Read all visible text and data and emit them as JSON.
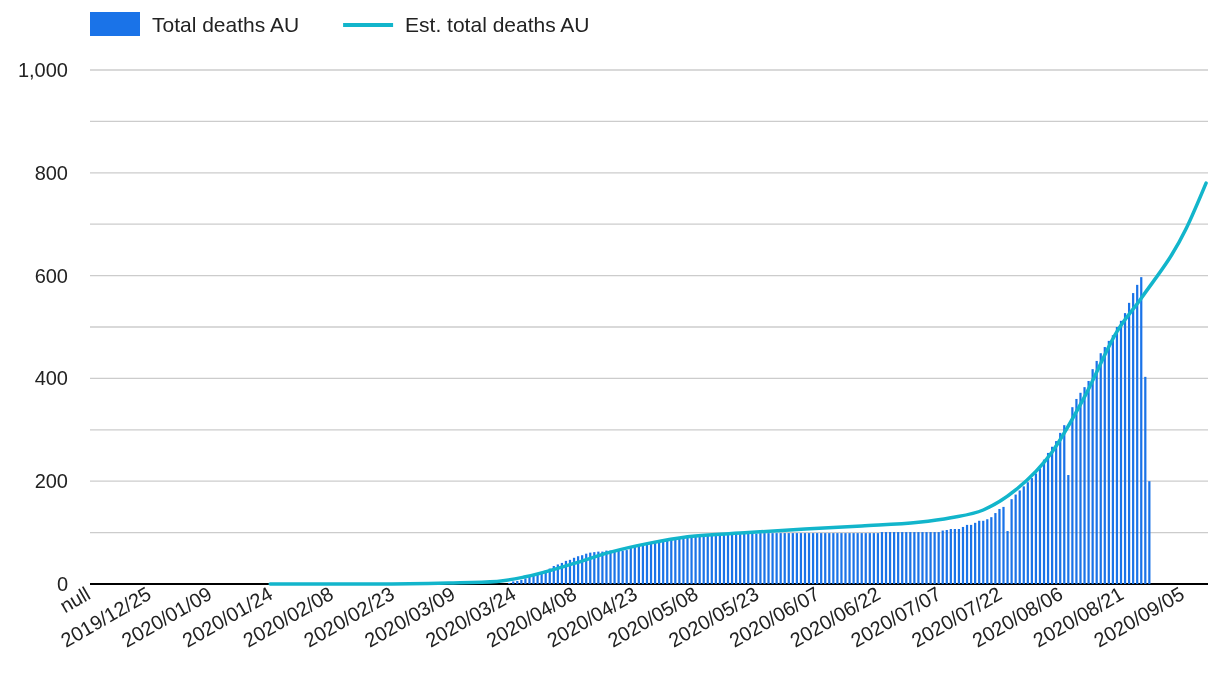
{
  "chart_data": {
    "type": "bar",
    "legend": "top",
    "grid": "y",
    "categories": [
      "null",
      null,
      null,
      null,
      null,
      null,
      null,
      null,
      null,
      null,
      null,
      null,
      null,
      null,
      null,
      "2019/12/25",
      null,
      null,
      null,
      null,
      null,
      null,
      null,
      null,
      null,
      null,
      null,
      null,
      null,
      null,
      "2020/01/09",
      null,
      null,
      null,
      null,
      null,
      null,
      null,
      null,
      null,
      null,
      null,
      null,
      null,
      null,
      "2020/01/24",
      null,
      null,
      null,
      null,
      null,
      null,
      null,
      null,
      null,
      null,
      null,
      null,
      null,
      null,
      "2020/02/08",
      null,
      null,
      null,
      null,
      null,
      null,
      null,
      null,
      null,
      null,
      null,
      null,
      null,
      null,
      "2020/02/23",
      null,
      null,
      null,
      null,
      null,
      null,
      null,
      null,
      null,
      null,
      null,
      null,
      null,
      null,
      "2020/03/09",
      null,
      null,
      null,
      null,
      null,
      null,
      null,
      null,
      null,
      null,
      null,
      null,
      null,
      null,
      "2020/03/24",
      null,
      null,
      null,
      null,
      null,
      null,
      null,
      null,
      null,
      null,
      null,
      null,
      null,
      null,
      "2020/04/08",
      null,
      null,
      null,
      null,
      null,
      null,
      null,
      null,
      null,
      null,
      null,
      null,
      null,
      null,
      "2020/04/23",
      null,
      null,
      null,
      null,
      null,
      null,
      null,
      null,
      null,
      null,
      null,
      null,
      null,
      null,
      "2020/05/08",
      null,
      null,
      null,
      null,
      null,
      null,
      null,
      null,
      null,
      null,
      null,
      null,
      null,
      null,
      "2020/05/23",
      null,
      null,
      null,
      null,
      null,
      null,
      null,
      null,
      null,
      null,
      null,
      null,
      null,
      null,
      "2020/06/07",
      null,
      null,
      null,
      null,
      null,
      null,
      null,
      null,
      null,
      null,
      null,
      null,
      null,
      null,
      "2020/06/22",
      null,
      null,
      null,
      null,
      null,
      null,
      null,
      null,
      null,
      null,
      null,
      null,
      null,
      null,
      "2020/07/07",
      null,
      null,
      null,
      null,
      null,
      null,
      null,
      null,
      null,
      null,
      null,
      null,
      null,
      null,
      "2020/07/22",
      null,
      null,
      null,
      null,
      null,
      null,
      null,
      null,
      null,
      null,
      null,
      null,
      null,
      null,
      "2020/08/06",
      null,
      null,
      null,
      null,
      null,
      null,
      null,
      null,
      null,
      null,
      null,
      null,
      null,
      null,
      "2020/08/21",
      null,
      null,
      null,
      null,
      null,
      null,
      null,
      null,
      null,
      null,
      null,
      null,
      null,
      null,
      "2020/09/05",
      null,
      null,
      null,
      null,
      null
    ],
    "ylim": [
      0,
      1000
    ],
    "yticks": [
      0,
      {
        "value": 100,
        "label": null
      },
      200,
      {
        "value": 300,
        "label": null
      },
      400,
      {
        "value": 500,
        "label": null
      },
      600,
      {
        "value": 700,
        "label": null
      },
      800,
      {
        "value": 900,
        "label": null
      },
      {
        "value": 1000,
        "label": "1,000"
      }
    ],
    "series": [
      {
        "name": "Total deaths AU",
        "color": "#1a73e8",
        "values": [
          null,
          null,
          null,
          null,
          null,
          null,
          null,
          null,
          null,
          null,
          null,
          null,
          null,
          null,
          null,
          null,
          null,
          null,
          null,
          null,
          null,
          null,
          null,
          null,
          null,
          null,
          null,
          null,
          null,
          null,
          null,
          null,
          null,
          null,
          null,
          null,
          null,
          null,
          null,
          null,
          null,
          null,
          null,
          null,
          null,
          null,
          null,
          null,
          null,
          null,
          null,
          null,
          null,
          null,
          null,
          null,
          null,
          null,
          null,
          null,
          null,
          null,
          null,
          null,
          null,
          null,
          null,
          null,
          null,
          null,
          null,
          null,
          null,
          null,
          null,
          null,
          null,
          null,
          null,
          null,
          null,
          null,
          null,
          null,
          null,
          null,
          null,
          null,
          null,
          null,
          null,
          null,
          null,
          null,
          null,
          null,
          null,
          null,
          null,
          null,
          null,
          null,
          null,
          2,
          5,
          6,
          8,
          11,
          14,
          17,
          20,
          23,
          26,
          30,
          35,
          38,
          41,
          45,
          47,
          51,
          54,
          56,
          59,
          61,
          62,
          63,
          63,
          65,
          65,
          65,
          65,
          65,
          66,
          70,
          74,
          76,
          78,
          80,
          81,
          83,
          84,
          86,
          86,
          88,
          89,
          89,
          90,
          91,
          92,
          92,
          92,
          93,
          94,
          94,
          95,
          95,
          96,
          96,
          97,
          97,
          97,
          98,
          98,
          98,
          98,
          99,
          99,
          99,
          99,
          99,
          99,
          99,
          99,
          99,
          99,
          99,
          99,
          99,
          99,
          99,
          99,
          99,
          99,
          99,
          99,
          99,
          99,
          99,
          99,
          99,
          99,
          99,
          99,
          99,
          99,
          101,
          101,
          101,
          101,
          101,
          101,
          101,
          101,
          101,
          101,
          101,
          101,
          101,
          101,
          101,
          104,
          105,
          107,
          107,
          107,
          111,
          115,
          115,
          119,
          123,
          123,
          126,
          130,
          138,
          146,
          150,
          103,
          165,
          174,
          182,
          190,
          198,
          206,
          215,
          225,
          242,
          255,
          267,
          278,
          294,
          309,
          212,
          344,
          360,
          372,
          383,
          395,
          418,
          434,
          449,
          461,
          473,
          484,
          500,
          512,
          527,
          547,
          566,
          582,
          597,
          403,
          200,
          null,
          null,
          null,
          null,
          null,
          null,
          null,
          null,
          null,
          null,
          null,
          null,
          null,
          null
        ]
      },
      {
        "name": "Est. total deaths AU",
        "type": "line",
        "color": "#12b5cb",
        "values": [
          null,
          null,
          null,
          null,
          null,
          null,
          null,
          null,
          null,
          null,
          null,
          null,
          null,
          null,
          null,
          null,
          null,
          null,
          null,
          null,
          null,
          null,
          null,
          null,
          null,
          null,
          null,
          null,
          null,
          null,
          null,
          null,
          null,
          null,
          null,
          null,
          null,
          null,
          null,
          null,
          null,
          null,
          null,
          null,
          0,
          null,
          null,
          null,
          null,
          null,
          null,
          null,
          null,
          null,
          null,
          null,
          null,
          null,
          null,
          null,
          null,
          null,
          null,
          null,
          null,
          null,
          null,
          null,
          null,
          null,
          0,
          null,
          null,
          null,
          null,
          null,
          null,
          null,
          null,
          null,
          null,
          null,
          null,
          null,
          null,
          null,
          null,
          null,
          2,
          null,
          null,
          null,
          null,
          null,
          null,
          null,
          null,
          null,
          null,
          null,
          5,
          null,
          null,
          null,
          null,
          null,
          null,
          14,
          null,
          null,
          null,
          null,
          null,
          null,
          null,
          null,
          null,
          null,
          null,
          40,
          null,
          null,
          null,
          null,
          null,
          null,
          null,
          null,
          62,
          null,
          null,
          null,
          null,
          null,
          null,
          null,
          null,
          null,
          80,
          null,
          null,
          null,
          null,
          null,
          null,
          null,
          null,
          92,
          null,
          null,
          null,
          null,
          null,
          null,
          null,
          null,
          null,
          null,
          null,
          null,
          null,
          null,
          100,
          null,
          null,
          null,
          null,
          null,
          null,
          null,
          null,
          null,
          null,
          null,
          null,
          null,
          107,
          null,
          null,
          null,
          null,
          null,
          null,
          null,
          null,
          null,
          null,
          null,
          null,
          null,
          113,
          null,
          null,
          null,
          null,
          null,
          null,
          null,
          null,
          null,
          null,
          null,
          null,
          null,
          120,
          null,
          null,
          null,
          null,
          null,
          null,
          null,
          129,
          null,
          null,
          null,
          null,
          null,
          null,
          null,
          144,
          null,
          null,
          null,
          null,
          null,
          null,
          null,
          183,
          null,
          null,
          null,
          null,
          null,
          null,
          null,
          null,
          257,
          null,
          null,
          null,
          null,
          null,
          null,
          null,
          364,
          null,
          null,
          null,
          null,
          null,
          null,
          null,
          491,
          null,
          null,
          null,
          null,
          null,
          556,
          null,
          null,
          null,
          null,
          null,
          null,
          null,
          null,
          null,
          null,
          690,
          null,
          null,
          null,
          null,
          780
        ]
      }
    ]
  }
}
